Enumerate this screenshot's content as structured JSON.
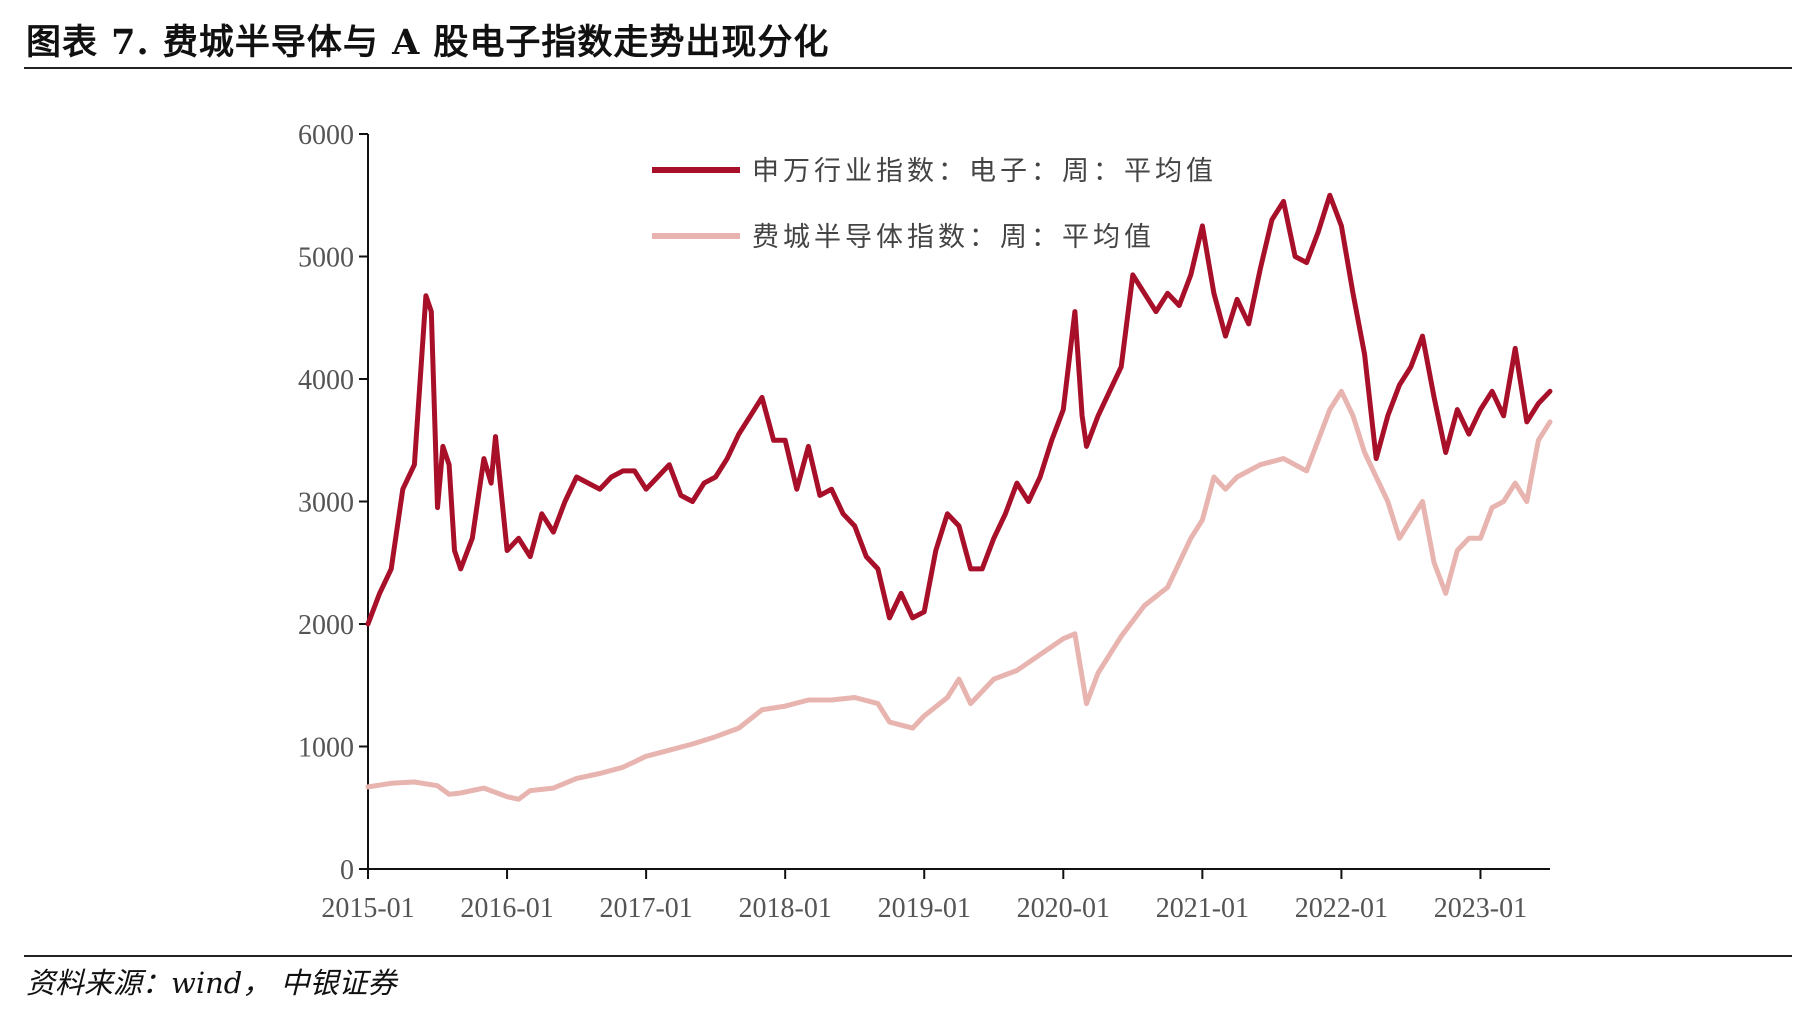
{
  "title": "图表 7. 费城半导体与 A 股电子指数走势出现分化",
  "source": "资料来源：wind， 中银证券",
  "chart_data": {
    "type": "line",
    "title": "",
    "xlabel": "",
    "ylabel": "",
    "ylim": [
      0,
      6000
    ],
    "yticks": [
      0,
      1000,
      2000,
      3000,
      4000,
      5000,
      6000
    ],
    "xlim": [
      "2015-01",
      "2023-07"
    ],
    "xticks": [
      "2015-01",
      "2016-01",
      "2017-01",
      "2018-01",
      "2019-01",
      "2020-01",
      "2021-01",
      "2022-01",
      "2023-01"
    ],
    "grid": false,
    "legend_position": "top-center",
    "series": [
      {
        "name": "申万行业指数：电子：周：平均值",
        "color": "#a8102a",
        "points": [
          [
            "2015-01",
            2000
          ],
          [
            "2015-02",
            2250
          ],
          [
            "2015-03",
            2450
          ],
          [
            "2015-04",
            3100
          ],
          [
            "2015-05",
            3300
          ],
          [
            "2015-06",
            4680
          ],
          [
            "2015-06-15",
            4550
          ],
          [
            "2015-07",
            2950
          ],
          [
            "2015-07-15",
            3450
          ],
          [
            "2015-08",
            3300
          ],
          [
            "2015-08-15",
            2600
          ],
          [
            "2015-09",
            2450
          ],
          [
            "2015-10",
            2700
          ],
          [
            "2015-11",
            3350
          ],
          [
            "2015-11-20",
            3150
          ],
          [
            "2015-12",
            3530
          ],
          [
            "2016-01",
            2600
          ],
          [
            "2016-02",
            2700
          ],
          [
            "2016-03",
            2550
          ],
          [
            "2016-04",
            2900
          ],
          [
            "2016-05",
            2750
          ],
          [
            "2016-06",
            3000
          ],
          [
            "2016-07",
            3200
          ],
          [
            "2016-08",
            3150
          ],
          [
            "2016-09",
            3100
          ],
          [
            "2016-10",
            3200
          ],
          [
            "2016-11",
            3250
          ],
          [
            "2016-12",
            3250
          ],
          [
            "2017-01",
            3100
          ],
          [
            "2017-02",
            3200
          ],
          [
            "2017-03",
            3300
          ],
          [
            "2017-04",
            3050
          ],
          [
            "2017-05",
            3000
          ],
          [
            "2017-06",
            3150
          ],
          [
            "2017-07",
            3200
          ],
          [
            "2017-08",
            3350
          ],
          [
            "2017-09",
            3550
          ],
          [
            "2017-10",
            3700
          ],
          [
            "2017-11",
            3850
          ],
          [
            "2017-12",
            3500
          ],
          [
            "2018-01",
            3500
          ],
          [
            "2018-02",
            3100
          ],
          [
            "2018-03",
            3450
          ],
          [
            "2018-04",
            3050
          ],
          [
            "2018-05",
            3100
          ],
          [
            "2018-06",
            2900
          ],
          [
            "2018-07",
            2800
          ],
          [
            "2018-08",
            2550
          ],
          [
            "2018-09",
            2450
          ],
          [
            "2018-10",
            2050
          ],
          [
            "2018-11",
            2250
          ],
          [
            "2018-12",
            2050
          ],
          [
            "2019-01",
            2100
          ],
          [
            "2019-02",
            2600
          ],
          [
            "2019-03",
            2900
          ],
          [
            "2019-04",
            2800
          ],
          [
            "2019-05",
            2450
          ],
          [
            "2019-06",
            2450
          ],
          [
            "2019-07",
            2700
          ],
          [
            "2019-08",
            2900
          ],
          [
            "2019-09",
            3150
          ],
          [
            "2019-10",
            3000
          ],
          [
            "2019-11",
            3200
          ],
          [
            "2019-12",
            3500
          ],
          [
            "2020-01",
            3750
          ],
          [
            "2020-02",
            4550
          ],
          [
            "2020-02-20",
            3700
          ],
          [
            "2020-03",
            3450
          ],
          [
            "2020-04",
            3700
          ],
          [
            "2020-05",
            3900
          ],
          [
            "2020-06",
            4100
          ],
          [
            "2020-07",
            4850
          ],
          [
            "2020-08",
            4700
          ],
          [
            "2020-09",
            4550
          ],
          [
            "2020-10",
            4700
          ],
          [
            "2020-11",
            4600
          ],
          [
            "2020-12",
            4850
          ],
          [
            "2021-01",
            5250
          ],
          [
            "2021-02",
            4700
          ],
          [
            "2021-03",
            4350
          ],
          [
            "2021-04",
            4650
          ],
          [
            "2021-05",
            4450
          ],
          [
            "2021-06",
            4900
          ],
          [
            "2021-07",
            5300
          ],
          [
            "2021-08",
            5450
          ],
          [
            "2021-09",
            5000
          ],
          [
            "2021-10",
            4950
          ],
          [
            "2021-11",
            5200
          ],
          [
            "2021-12",
            5500
          ],
          [
            "2022-01",
            5250
          ],
          [
            "2022-02",
            4700
          ],
          [
            "2022-03",
            4200
          ],
          [
            "2022-04",
            3350
          ],
          [
            "2022-05",
            3700
          ],
          [
            "2022-06",
            3950
          ],
          [
            "2022-07",
            4100
          ],
          [
            "2022-08",
            4350
          ],
          [
            "2022-09",
            3850
          ],
          [
            "2022-10",
            3400
          ],
          [
            "2022-11",
            3750
          ],
          [
            "2022-12",
            3550
          ],
          [
            "2023-01",
            3750
          ],
          [
            "2023-02",
            3900
          ],
          [
            "2023-03",
            3700
          ],
          [
            "2023-04",
            4250
          ],
          [
            "2023-05",
            3650
          ],
          [
            "2023-06",
            3800
          ],
          [
            "2023-07",
            3900
          ]
        ]
      },
      {
        "name": "费城半导体指数：周：平均值",
        "color": "#e8b4b0",
        "points": [
          [
            "2015-01",
            670
          ],
          [
            "2015-03",
            700
          ],
          [
            "2015-05",
            710
          ],
          [
            "2015-07",
            680
          ],
          [
            "2015-08",
            610
          ],
          [
            "2015-09",
            620
          ],
          [
            "2015-11",
            660
          ],
          [
            "2016-01",
            590
          ],
          [
            "2016-02",
            570
          ],
          [
            "2016-03",
            640
          ],
          [
            "2016-05",
            660
          ],
          [
            "2016-07",
            740
          ],
          [
            "2016-09",
            780
          ],
          [
            "2016-11",
            830
          ],
          [
            "2017-01",
            920
          ],
          [
            "2017-03",
            970
          ],
          [
            "2017-05",
            1020
          ],
          [
            "2017-07",
            1080
          ],
          [
            "2017-09",
            1150
          ],
          [
            "2017-11",
            1300
          ],
          [
            "2018-01",
            1330
          ],
          [
            "2018-03",
            1380
          ],
          [
            "2018-05",
            1380
          ],
          [
            "2018-07",
            1400
          ],
          [
            "2018-09",
            1350
          ],
          [
            "2018-10",
            1200
          ],
          [
            "2018-12",
            1150
          ],
          [
            "2019-01",
            1250
          ],
          [
            "2019-03",
            1400
          ],
          [
            "2019-04",
            1550
          ],
          [
            "2019-05",
            1350
          ],
          [
            "2019-06",
            1450
          ],
          [
            "2019-07",
            1550
          ],
          [
            "2019-09",
            1620
          ],
          [
            "2019-11",
            1750
          ],
          [
            "2020-01",
            1880
          ],
          [
            "2020-02",
            1920
          ],
          [
            "2020-03",
            1350
          ],
          [
            "2020-04",
            1600
          ],
          [
            "2020-06",
            1900
          ],
          [
            "2020-08",
            2150
          ],
          [
            "2020-10",
            2300
          ],
          [
            "2020-12",
            2700
          ],
          [
            "2021-01",
            2850
          ],
          [
            "2021-02",
            3200
          ],
          [
            "2021-03",
            3100
          ],
          [
            "2021-04",
            3200
          ],
          [
            "2021-06",
            3300
          ],
          [
            "2021-08",
            3350
          ],
          [
            "2021-10",
            3250
          ],
          [
            "2021-12",
            3750
          ],
          [
            "2022-01",
            3900
          ],
          [
            "2022-02",
            3700
          ],
          [
            "2022-03",
            3400
          ],
          [
            "2022-04",
            3200
          ],
          [
            "2022-05",
            3000
          ],
          [
            "2022-06",
            2700
          ],
          [
            "2022-07",
            2850
          ],
          [
            "2022-08",
            3000
          ],
          [
            "2022-09",
            2500
          ],
          [
            "2022-10",
            2250
          ],
          [
            "2022-11",
            2600
          ],
          [
            "2022-12",
            2700
          ],
          [
            "2023-01",
            2700
          ],
          [
            "2023-02",
            2950
          ],
          [
            "2023-03",
            3000
          ],
          [
            "2023-04",
            3150
          ],
          [
            "2023-05",
            3000
          ],
          [
            "2023-06",
            3500
          ],
          [
            "2023-07",
            3650
          ]
        ]
      }
    ]
  }
}
